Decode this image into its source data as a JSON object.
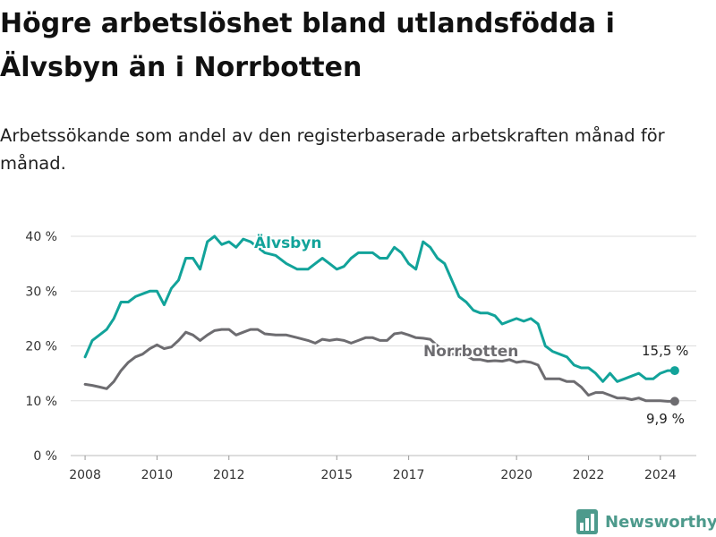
{
  "title": "Högre arbetslöshet bland utlandsfödda i Älvsbyn än i Norrbotten",
  "subtitle": "Arbetssökande som andel av den registerbaserade arbetskraften månad för månad.",
  "brand": {
    "name": "Newsworthy"
  },
  "colors": {
    "alvsbyn": "#12a39a",
    "norrbotten": "#6d6c70",
    "grid": "#dddddd",
    "brand": "#4d9a8c"
  },
  "chart_data": {
    "type": "line",
    "title": "Högre arbetslöshet bland utlandsfödda i Älvsbyn än i Norrbotten",
    "xlabel": "",
    "ylabel": "",
    "ylim": [
      0,
      40
    ],
    "xlim": [
      2007.6,
      2025.0
    ],
    "grid": true,
    "y_ticks": [
      {
        "value": 0,
        "label": "0 %"
      },
      {
        "value": 10,
        "label": "10 %"
      },
      {
        "value": 20,
        "label": "20 %"
      },
      {
        "value": 30,
        "label": "30 %"
      },
      {
        "value": 40,
        "label": "40 %"
      }
    ],
    "x_ticks": [
      {
        "value": 2008,
        "label": "2008"
      },
      {
        "value": 2010,
        "label": "2010"
      },
      {
        "value": 2012,
        "label": "2012"
      },
      {
        "value": 2015,
        "label": "2015"
      },
      {
        "value": 2017,
        "label": "2017"
      },
      {
        "value": 2020,
        "label": "2020"
      },
      {
        "value": 2022,
        "label": "2022"
      },
      {
        "value": 2024,
        "label": "2024"
      }
    ],
    "series": [
      {
        "name": "Älvsbyn",
        "label": "Älvsbyn",
        "color": "#12a39a",
        "end_label": "15,5 %",
        "x": [
          2008.0,
          2008.2,
          2008.4,
          2008.6,
          2008.8,
          2009.0,
          2009.2,
          2009.4,
          2009.6,
          2009.8,
          2010.0,
          2010.2,
          2010.4,
          2010.6,
          2010.8,
          2011.0,
          2011.2,
          2011.4,
          2011.6,
          2011.8,
          2012.0,
          2012.2,
          2012.4,
          2012.6,
          2012.8,
          2013.0,
          2013.3,
          2013.6,
          2013.9,
          2014.2,
          2014.4,
          2014.6,
          2014.8,
          2015.0,
          2015.2,
          2015.4,
          2015.6,
          2015.8,
          2016.0,
          2016.2,
          2016.4,
          2016.6,
          2016.8,
          2017.0,
          2017.2,
          2017.4,
          2017.6,
          2017.8,
          2018.0,
          2018.2,
          2018.4,
          2018.6,
          2018.8,
          2019.0,
          2019.2,
          2019.4,
          2019.6,
          2019.8,
          2020.0,
          2020.2,
          2020.4,
          2020.6,
          2020.8,
          2021.0,
          2021.2,
          2021.4,
          2021.6,
          2021.8,
          2022.0,
          2022.2,
          2022.4,
          2022.6,
          2022.8,
          2023.0,
          2023.2,
          2023.4,
          2023.6,
          2023.8,
          2024.0,
          2024.2,
          2024.4
        ],
        "y": [
          18,
          21,
          22,
          23,
          25,
          28,
          28,
          29,
          29.5,
          30,
          30,
          27.5,
          30.5,
          32,
          36,
          36,
          34,
          39,
          40,
          38.5,
          39,
          38,
          39.5,
          39,
          38,
          37,
          36.5,
          35,
          34,
          34,
          35,
          36,
          35,
          34,
          34.5,
          36,
          37,
          37,
          37,
          36,
          36,
          38,
          37,
          35,
          34,
          39,
          38,
          36,
          35,
          32,
          29,
          28,
          26.5,
          26,
          26,
          25.5,
          24,
          24.5,
          25,
          24.5,
          25,
          24,
          20,
          19,
          18.5,
          18,
          16.5,
          16,
          16,
          15,
          13.5,
          15,
          13.5,
          14,
          14.5,
          15,
          14,
          14,
          15,
          15.5,
          15.5
        ]
      },
      {
        "name": "Norrbotten",
        "label": "Norrbotten",
        "color": "#6d6c70",
        "end_label": "9,9 %",
        "x": [
          2008.0,
          2008.2,
          2008.4,
          2008.6,
          2008.8,
          2009.0,
          2009.2,
          2009.4,
          2009.6,
          2009.8,
          2010.0,
          2010.2,
          2010.4,
          2010.6,
          2010.8,
          2011.0,
          2011.2,
          2011.4,
          2011.6,
          2011.8,
          2012.0,
          2012.2,
          2012.4,
          2012.6,
          2012.8,
          2013.0,
          2013.3,
          2013.6,
          2013.9,
          2014.2,
          2014.4,
          2014.6,
          2014.8,
          2015.0,
          2015.2,
          2015.4,
          2015.6,
          2015.8,
          2016.0,
          2016.2,
          2016.4,
          2016.6,
          2016.8,
          2017.0,
          2017.2,
          2017.4,
          2017.6,
          2017.8,
          2018.0,
          2018.2,
          2018.4,
          2018.6,
          2018.8,
          2019.0,
          2019.2,
          2019.4,
          2019.6,
          2019.8,
          2020.0,
          2020.2,
          2020.4,
          2020.6,
          2020.8,
          2021.0,
          2021.2,
          2021.4,
          2021.6,
          2021.8,
          2022.0,
          2022.2,
          2022.4,
          2022.6,
          2022.8,
          2023.0,
          2023.2,
          2023.4,
          2023.6,
          2023.8,
          2024.0,
          2024.2,
          2024.4
        ],
        "y": [
          13,
          12.8,
          12.5,
          12.2,
          13.5,
          15.5,
          17,
          18,
          18.5,
          19.5,
          20.2,
          19.5,
          19.8,
          21,
          22.5,
          22,
          21,
          22,
          22.8,
          23,
          23,
          22,
          22.5,
          23,
          23,
          22.2,
          22,
          22,
          21.5,
          21,
          20.5,
          21.2,
          21,
          21.2,
          21,
          20.5,
          21,
          21.5,
          21.5,
          21,
          21,
          22.2,
          22.4,
          22,
          21.5,
          21.4,
          21.2,
          20,
          19,
          18.5,
          18.5,
          18.2,
          17.5,
          17.5,
          17.2,
          17.3,
          17.2,
          17.5,
          17,
          17.2,
          17,
          16.5,
          14,
          14,
          14,
          13.5,
          13.5,
          12.5,
          11,
          11.5,
          11.5,
          11,
          10.5,
          10.5,
          10.2,
          10.5,
          10,
          10,
          10,
          9.9,
          9.9
        ]
      }
    ]
  }
}
